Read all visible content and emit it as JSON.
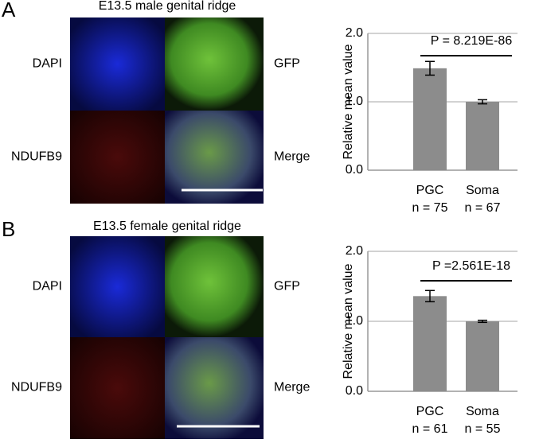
{
  "panels": [
    {
      "letter": "A",
      "title": "E13.5 male genital ridge",
      "labels": [
        "DAPI",
        "GFP",
        "NDUFB9",
        "Merge"
      ]
    },
    {
      "letter": "B",
      "title": "E13.5 female genital ridge",
      "labels": [
        "DAPI",
        "GFP",
        "NDUFB9",
        "Merge"
      ]
    }
  ],
  "chart_data": [
    {
      "type": "bar",
      "ylabel": "Relative mean value",
      "categories": [
        "PGC",
        "Soma"
      ],
      "n_labels": [
        "n = 75",
        "n = 67"
      ],
      "values": [
        1.49,
        1.0
      ],
      "errors": [
        0.1,
        0.03
      ],
      "color": "#8c8c8c",
      "ylim": [
        0,
        2
      ],
      "yticks": [
        {
          "value": 0,
          "label": "0.0"
        },
        {
          "value": 1,
          "label": "1.0"
        },
        {
          "value": 2,
          "label": "2.0"
        }
      ],
      "grid": true,
      "annotation": "P = 8.219E-86"
    },
    {
      "type": "bar",
      "ylabel": "Relative mean value",
      "categories": [
        "PGC",
        "Soma"
      ],
      "n_labels": [
        "n = 61",
        "n = 55"
      ],
      "values": [
        1.36,
        1.0
      ],
      "errors": [
        0.08,
        0.015
      ],
      "color": "#8c8c8c",
      "ylim": [
        0,
        2
      ],
      "yticks": [
        {
          "value": 0,
          "label": "0.0"
        },
        {
          "value": 1,
          "label": "1.0"
        },
        {
          "value": 2,
          "label": "2.0"
        }
      ],
      "grid": true,
      "annotation": "P =2.561E-18"
    }
  ]
}
